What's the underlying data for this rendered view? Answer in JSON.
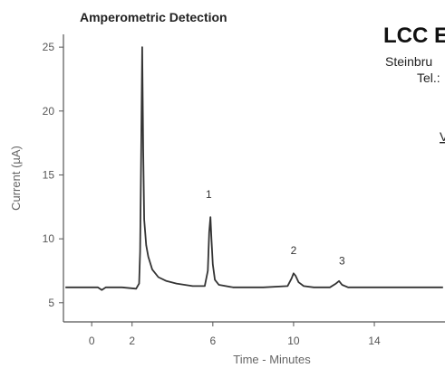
{
  "chart_data": {
    "type": "line",
    "title": "Amperometric Detection",
    "xlabel": "Time - Minutes",
    "ylabel": "Current (µA)",
    "xlim": [
      -1.4,
      17.5
    ],
    "ylim": [
      3.5,
      26
    ],
    "x_ticks": [
      0,
      2,
      6,
      10,
      14
    ],
    "y_ticks": [
      5,
      10,
      15,
      20,
      25
    ],
    "grid": false,
    "series": [
      {
        "x": [
          -1.3,
          -0.5,
          0.3,
          0.5,
          0.7,
          1.5,
          2.2,
          2.35,
          2.4,
          2.45,
          2.5,
          2.55,
          2.6,
          2.7,
          2.8,
          3.0,
          3.3,
          3.7,
          4.2,
          5.0,
          5.6,
          5.75,
          5.82,
          5.88,
          5.93,
          6.0,
          6.1,
          6.3,
          7.0,
          8.5,
          9.7,
          9.9,
          10.0,
          10.1,
          10.25,
          10.5,
          11.0,
          11.8,
          12.1,
          12.25,
          12.4,
          12.7,
          13.5,
          15.0,
          16.5,
          17.4
        ],
        "y": [
          6.2,
          6.2,
          6.2,
          6.0,
          6.2,
          6.2,
          6.1,
          6.5,
          9.0,
          17.0,
          25.0,
          17.0,
          11.5,
          9.5,
          8.6,
          7.6,
          7.0,
          6.7,
          6.5,
          6.3,
          6.3,
          7.5,
          10.5,
          11.7,
          10.0,
          8.0,
          6.8,
          6.4,
          6.2,
          6.2,
          6.3,
          6.9,
          7.3,
          7.1,
          6.6,
          6.3,
          6.2,
          6.2,
          6.5,
          6.7,
          6.4,
          6.2,
          6.2,
          6.2,
          6.2,
          6.2
        ]
      }
    ],
    "annotations": [
      {
        "text": "1",
        "x": 5.8,
        "y": 13.2
      },
      {
        "text": "2",
        "x": 10.0,
        "y": 8.8
      },
      {
        "text": "3",
        "x": 12.4,
        "y": 8.0
      }
    ]
  },
  "brand": {
    "name": "LCC E",
    "line1": "Steinbru",
    "line2": "Tel.:",
    "line3": "V"
  },
  "colors": {
    "line": "#333333",
    "axis": "#555555",
    "text": "#222222"
  }
}
